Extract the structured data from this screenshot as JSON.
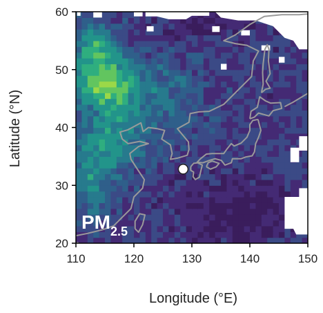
{
  "map": {
    "xlabel": "Longitude (°E)",
    "ylabel": "Latitude (°N)",
    "xlim": [
      110,
      150
    ],
    "ylim": [
      20,
      60
    ],
    "xticks": [
      "110",
      "120",
      "130",
      "140",
      "150"
    ],
    "yticks": [
      "20",
      "30",
      "40",
      "50",
      "60"
    ],
    "pm_label_main": "PM",
    "pm_label_sub": "2.5",
    "colors": {
      "coastline": "#9a9a9a",
      "marker_fill": "#ffffff",
      "marker_stroke": "#222222",
      "colormap": [
        "#3a1d5c",
        "#442a74",
        "#3b4a86",
        "#2f5f8a",
        "#277a8d",
        "#22948a",
        "#2fae7f",
        "#62c55f",
        "#9bd848"
      ]
    },
    "marker": {
      "name": "observation-site",
      "lon": 128.5,
      "lat": 32.8
    }
  }
}
